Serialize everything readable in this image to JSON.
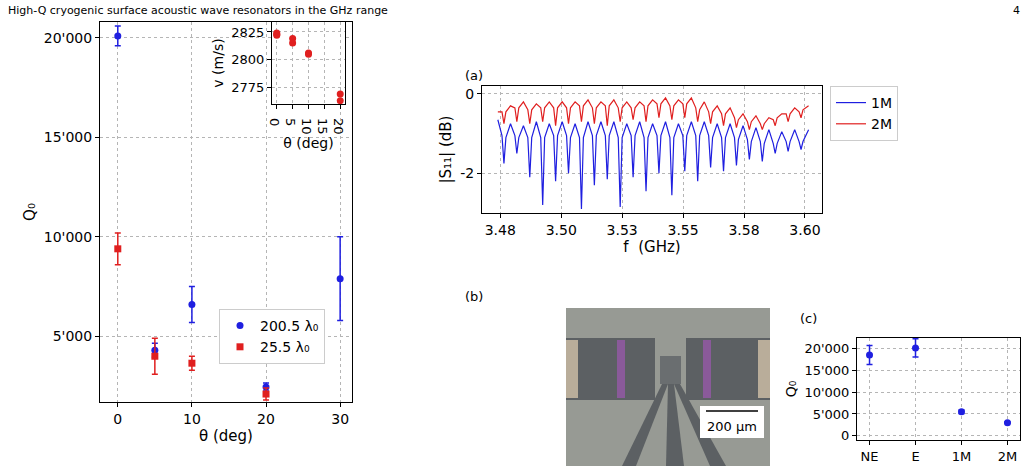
{
  "header": {
    "title": "High-Q cryogenic surface acoustic wave resonators in the GHz range",
    "page": "4"
  },
  "chart_data": [
    {
      "type": "scatter",
      "x_label": "θ (deg)",
      "y_label": "Q₀",
      "xlim": [
        -2.4,
        31.6
      ],
      "ylim": [
        1700,
        20800
      ],
      "xticks": [
        0,
        10,
        20,
        30
      ],
      "yticks": [
        {
          "value": 5000,
          "label": "5'000"
        },
        {
          "value": 10000,
          "label": "10'000"
        },
        {
          "value": 15000,
          "label": "15'000"
        },
        {
          "value": 20000,
          "label": "20'000"
        }
      ],
      "grid": true,
      "legend": "lower right",
      "series": [
        {
          "name": "200.5 λ₀",
          "color": "#1f1fe0",
          "marker": "circle",
          "x": [
            0,
            5,
            10,
            20,
            30
          ],
          "values": [
            20100,
            4300,
            6600,
            2450,
            7900
          ],
          "error": [
            500,
            350,
            900,
            200,
            2100
          ]
        },
        {
          "name": "25.5 λ₀",
          "color": "#e01f1f",
          "marker": "square",
          "x": [
            0,
            5,
            10,
            20
          ],
          "values": [
            9400,
            4000,
            3650,
            2100
          ],
          "error": [
            800,
            900,
            350,
            300
          ]
        }
      ],
      "inset": {
        "type": "scatter",
        "x_label": "θ (deg)",
        "y_label": "v (m/s)",
        "xlim": [
          -1.5,
          21.5
        ],
        "ylim": [
          2760,
          2834
        ],
        "xticks": [
          0,
          5,
          10,
          15,
          20
        ],
        "yticks": [
          2775,
          2800,
          2825
        ],
        "grid": true,
        "series": [
          {
            "color": "#e01f1f",
            "marker": "circle",
            "x": [
              0,
              0,
              0,
              5,
              5,
              10,
              10,
              20,
              20
            ],
            "values": [
              2824,
              2823,
              2822,
              2819,
              2815,
              2806,
              2805,
              2769,
              2763
            ]
          }
        ]
      }
    },
    {
      "type": "line",
      "label": "(a)",
      "x_label": "f  (GHz)",
      "y_label": "|S₁₁| (dB)",
      "xlim": [
        3.4725,
        3.612
      ],
      "ylim": [
        -3.0,
        0.2
      ],
      "xticks": [
        3.48,
        {
          "value": 3.505,
          "label": "3.50"
        },
        3.53,
        {
          "value": 3.555,
          "label": "3.55"
        },
        3.58,
        {
          "value": 3.605,
          "label": "3.60"
        }
      ],
      "yticks": [
        -2,
        0
      ],
      "grid": true,
      "legend": "right",
      "x": [
        3.479,
        3.4807,
        3.4815,
        3.4823,
        3.4842,
        3.486,
        3.4868,
        3.4876,
        3.4895,
        3.4913,
        3.4921,
        3.4929,
        3.4948,
        3.4966,
        3.4974,
        3.4982,
        3.5001,
        3.5019,
        3.5027,
        3.5035,
        3.5054,
        3.5072,
        3.508,
        3.5088,
        3.5107,
        3.5125,
        3.5133,
        3.5141,
        3.516,
        3.5178,
        3.5186,
        3.5194,
        3.5213,
        3.5231,
        3.5239,
        3.5247,
        3.5266,
        3.5284,
        3.5292,
        3.53,
        3.5319,
        3.5337,
        3.5345,
        3.5353,
        3.5372,
        3.539,
        3.5398,
        3.5406,
        3.5425,
        3.5443,
        3.5451,
        3.5459,
        3.5478,
        3.5496,
        3.5504,
        3.5512,
        3.5531,
        3.5549,
        3.5557,
        3.5565,
        3.5584,
        3.5602,
        3.561,
        3.5618,
        3.5637,
        3.5655,
        3.5663,
        3.5671,
        3.569,
        3.5708,
        3.5716,
        3.5724,
        3.5743,
        3.5761,
        3.5769,
        3.5777,
        3.5796,
        3.5814,
        3.5822,
        3.583,
        3.5849,
        3.5867,
        3.5875,
        3.5883,
        3.5902,
        3.592,
        3.5928,
        3.5936,
        3.5955,
        3.5973,
        3.5981,
        3.5989,
        3.6008,
        3.6026,
        3.6034,
        3.6042,
        3.6065
      ],
      "series": [
        {
          "name": "1M",
          "color": "#1f1fe0",
          "values": [
            -0.65,
            -1.05,
            -1.75,
            -1.1,
            -0.75,
            -1.05,
            -1.5,
            -1.1,
            -0.8,
            -1.1,
            -2.1,
            -1.1,
            -0.7,
            -1.1,
            -2.8,
            -1.1,
            -0.75,
            -1.05,
            -2.2,
            -1.05,
            -0.7,
            -1.05,
            -2.0,
            -1.1,
            -0.75,
            -1.1,
            -2.9,
            -1.1,
            -0.7,
            -1.05,
            -2.3,
            -1.05,
            -0.7,
            -1.05,
            -2.15,
            -1.05,
            -0.7,
            -1.1,
            -2.85,
            -1.1,
            -0.75,
            -1.05,
            -2.1,
            -1.05,
            -0.7,
            -1.1,
            -2.45,
            -1.1,
            -0.75,
            -1.05,
            -2.0,
            -1.05,
            -0.7,
            -1.1,
            -2.55,
            -1.1,
            -0.75,
            -1.05,
            -1.95,
            -1.05,
            -0.7,
            -1.05,
            -2.2,
            -1.05,
            -0.7,
            -1.05,
            -1.85,
            -1.1,
            -0.75,
            -1.1,
            -1.95,
            -1.1,
            -0.75,
            -1.1,
            -1.8,
            -1.15,
            -0.8,
            -1.15,
            -1.65,
            -1.2,
            -0.85,
            -1.2,
            -1.7,
            -1.25,
            -0.9,
            -1.25,
            -1.5,
            -1.25,
            -0.95,
            -1.2,
            -1.45,
            -1.2,
            -0.9,
            -1.2,
            -1.4,
            -1.2,
            -0.9
          ]
        },
        {
          "name": "2M",
          "color": "#e01f1f",
          "values": [
            -0.45,
            -0.45,
            -0.75,
            -0.45,
            -0.3,
            -0.35,
            -0.7,
            -0.35,
            -0.2,
            -0.4,
            -0.75,
            -0.4,
            -0.25,
            -0.35,
            -0.7,
            -0.35,
            -0.2,
            -0.35,
            -0.8,
            -0.35,
            -0.2,
            -0.35,
            -0.75,
            -0.35,
            -0.2,
            -0.3,
            -0.7,
            -0.3,
            -0.15,
            -0.35,
            -0.75,
            -0.35,
            -0.2,
            -0.3,
            -0.8,
            -0.3,
            -0.15,
            -0.35,
            -0.7,
            -0.35,
            -0.2,
            -0.35,
            -0.65,
            -0.35,
            -0.2,
            -0.3,
            -0.7,
            -0.3,
            -0.15,
            -0.25,
            -0.6,
            -0.25,
            -0.1,
            -0.3,
            -0.65,
            -0.3,
            -0.15,
            -0.25,
            -0.6,
            -0.25,
            -0.1,
            -0.35,
            -0.7,
            -0.4,
            -0.2,
            -0.45,
            -0.75,
            -0.45,
            -0.3,
            -0.5,
            -0.8,
            -0.5,
            -0.35,
            -0.6,
            -0.85,
            -0.65,
            -0.5,
            -0.7,
            -0.9,
            -0.7,
            -0.55,
            -0.75,
            -0.9,
            -0.75,
            -0.6,
            -0.65,
            -0.8,
            -0.6,
            -0.5,
            -0.5,
            -0.7,
            -0.5,
            -0.35,
            -0.45,
            -0.6,
            -0.4,
            -0.3
          ]
        }
      ]
    },
    {
      "type": "image",
      "label": "(b)",
      "scale_bar": "200 µm"
    },
    {
      "type": "scatter",
      "label": "(c)",
      "y_label": "Q₀",
      "categories": [
        "NE",
        "E",
        "1M",
        "2M"
      ],
      "ylim": [
        -1000,
        22500
      ],
      "yticks": [
        0,
        {
          "value": 5000,
          "label": "5'000"
        },
        {
          "value": 10000,
          "label": "10'000"
        },
        {
          "value": 15000,
          "label": "15'000"
        },
        {
          "value": 20000,
          "label": "20'000"
        }
      ],
      "grid": true,
      "series": [
        {
          "color": "#1f1fe0",
          "marker": "circle",
          "values": [
            18600,
            20200,
            5500,
            3000
          ],
          "error": [
            2200,
            2100,
            400,
            200
          ]
        }
      ]
    }
  ]
}
